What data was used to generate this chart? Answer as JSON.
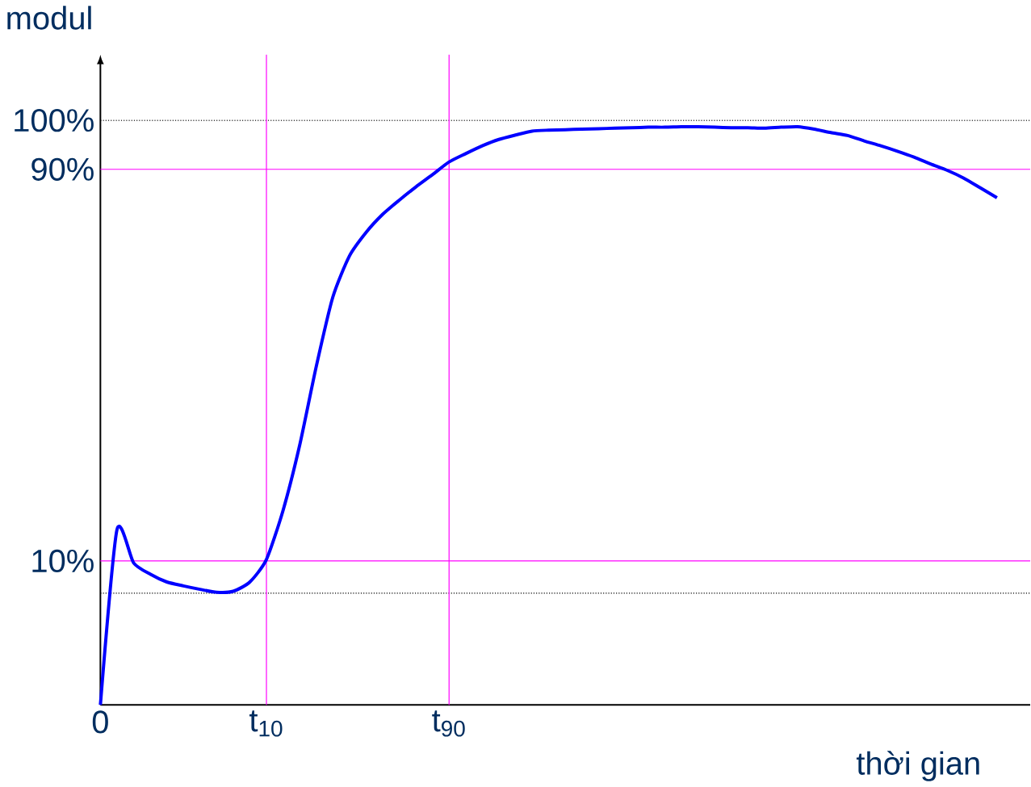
{
  "chart_data": {
    "type": "line",
    "xlabel": "thời gian",
    "ylabel": "modul",
    "ylim": [
      -19.4,
      113.4
    ],
    "yticks": [
      {
        "value": 10,
        "label": "10%"
      },
      {
        "value": 90,
        "label": "90%"
      },
      {
        "value": 100,
        "label": "100%"
      }
    ],
    "categories": [
      "0",
      null,
      null,
      null,
      null,
      null,
      null,
      null,
      null,
      null,
      "t$_{10}$",
      null,
      null,
      null,
      null,
      null,
      null,
      null,
      null,
      null,
      null,
      "t$_{90}$",
      null,
      null,
      null,
      null,
      null,
      null,
      null,
      null,
      null,
      null,
      null,
      null,
      null,
      null,
      null,
      null,
      null,
      null,
      null,
      null,
      null,
      null,
      null,
      null,
      null,
      null,
      null,
      null,
      null,
      null,
      null,
      null,
      null,
      null,
      null
    ],
    "series": [
      {
        "color": "#0000ff",
        "values": [
          -19.4,
          16.4,
          9.6,
          7.3,
          5.7,
          4.9,
          4.2,
          3.6,
          3.8,
          5.7,
          10.3,
          20.3,
          33.6,
          49.7,
          63.9,
          72.3,
          77.1,
          80.8,
          83.7,
          86.4,
          88.9,
          91.5,
          93.2,
          94.8,
          96.1,
          97.0,
          97.8,
          98.0,
          98.1,
          98.2,
          98.3,
          98.4,
          98.5,
          98.6,
          98.6,
          98.7,
          98.7,
          98.6,
          98.5,
          98.5,
          98.4,
          98.6,
          98.7,
          98.2,
          97.5,
          96.9,
          95.8,
          94.8,
          93.7,
          92.5,
          91.1,
          89.8,
          88.2,
          86.2,
          84.2,
          null,
          null
        ]
      }
    ],
    "ref_lines": [
      {
        "axis": "y",
        "value": 100,
        "color": "#000000",
        "line_style": "dotted"
      },
      {
        "axis": "y",
        "value": 3.4,
        "color": "#000000",
        "line_style": "dotted"
      },
      {
        "axis": "y",
        "value": 10,
        "color": "#ff00ff",
        "line_style": "solid"
      },
      {
        "axis": "y",
        "value": 90,
        "color": "#ff00ff",
        "line_style": "solid"
      },
      {
        "axis": "x",
        "value": "t$_{10}$",
        "color": "#ff00ff",
        "line_style": "solid"
      },
      {
        "axis": "x",
        "value": "t$_{90}$",
        "color": "#ff00ff",
        "line_style": "solid"
      }
    ]
  }
}
